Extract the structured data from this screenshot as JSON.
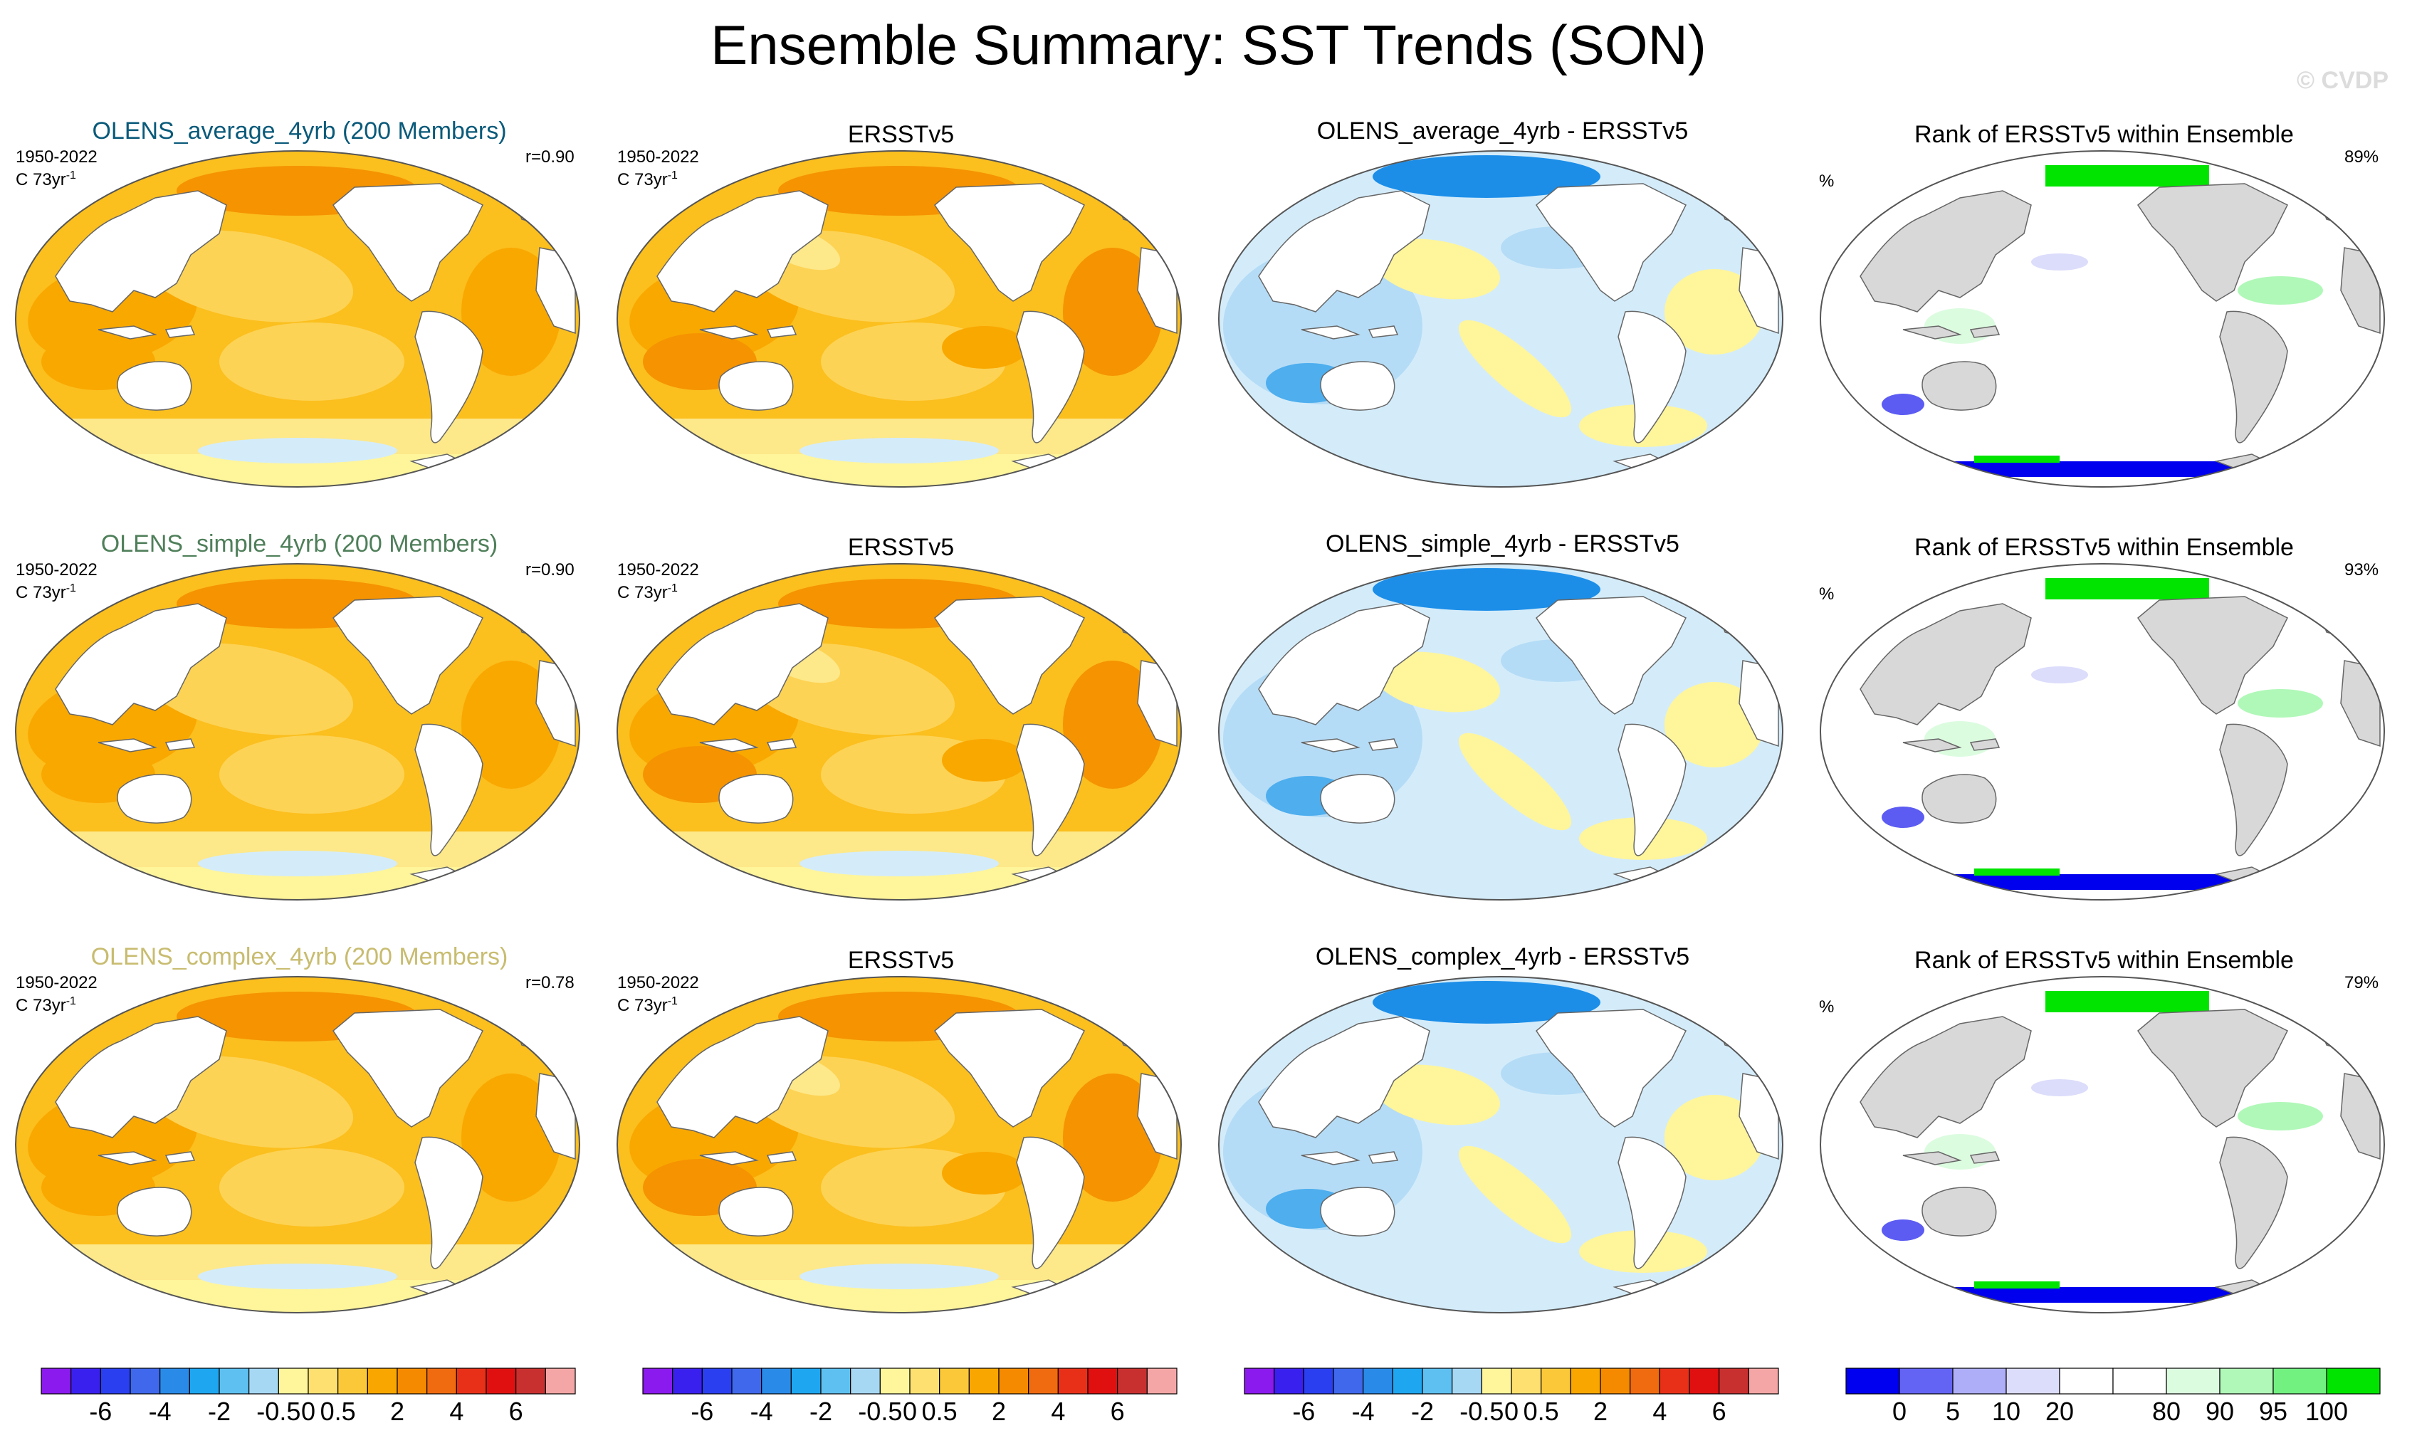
{
  "title": "Ensemble Summary: SST Trends (SON)",
  "watermark": "© CVDP",
  "colors": {
    "warm": [
      "#fff59b",
      "#fde88a",
      "#fdd355",
      "#fbbf1e",
      "#f9a800",
      "#f59300"
    ],
    "cool": [
      "#d4ecfa",
      "#b5dcf6",
      "#8ccaf2",
      "#4eaeee",
      "#1c8ee8"
    ],
    "land_gray": "#d8d8d8",
    "rank_low": [
      "#0000ee",
      "#5c5cf2",
      "#a8a8f6",
      "#dcdcfb"
    ],
    "rank_high": [
      "#dcfce0",
      "#b0f8b8",
      "#72f080",
      "#00e400"
    ]
  },
  "rows": [
    {
      "model_title": "OLENS_average_4yrb (200 Members)",
      "model_title_color": "#0a5a7a",
      "period": "1950-2022",
      "units": "C 73yr",
      "units_sup": "-1",
      "corr": "r=0.90",
      "obs_title": "ERSSTv5",
      "diff_title": "OLENS_average_4yrb - ERSSTv5",
      "rank_title": "Rank of ERSSTv5 within Ensemble",
      "rank_units": "%",
      "rank_pct": "89%"
    },
    {
      "model_title": "OLENS_simple_4yrb (200 Members)",
      "model_title_color": "#4f7f5a",
      "period": "1950-2022",
      "units": "C 73yr",
      "units_sup": "-1",
      "corr": "r=0.90",
      "obs_title": "ERSSTv5",
      "diff_title": "OLENS_simple_4yrb - ERSSTv5",
      "rank_title": "Rank of ERSSTv5 within Ensemble",
      "rank_units": "%",
      "rank_pct": "93%"
    },
    {
      "model_title": "OLENS_complex_4yrb (200 Members)",
      "model_title_color": "#c8bc70",
      "period": "1950-2022",
      "units": "C 73yr",
      "units_sup": "-1",
      "corr": "r=0.78",
      "obs_title": "ERSSTv5",
      "diff_title": "OLENS_complex_4yrb - ERSSTv5",
      "rank_title": "Rank of ERSSTv5 within Ensemble",
      "rank_units": "%",
      "rank_pct": "79%"
    }
  ],
  "colorbars": {
    "trend": {
      "colors": [
        "#8a1aee",
        "#3a20ee",
        "#2a3ff0",
        "#3f68ec",
        "#2a8ae8",
        "#1ea6f0",
        "#5ec0f0",
        "#a6d8f4",
        "#fff59b",
        "#fde070",
        "#fbc83a",
        "#f9a600",
        "#f58a00",
        "#f06a10",
        "#e83018",
        "#e01010",
        "#c83030",
        "#f4a6a6"
      ],
      "labels": [
        "-6",
        "-4",
        "-2",
        "-0.5",
        "0",
        "0.5",
        "2",
        "4",
        "6"
      ]
    },
    "rank": {
      "colors": [
        "#0000f0",
        "#6464f4",
        "#aeaef8",
        "#dcdcfb",
        "#ffffff",
        "#ffffff",
        "#dcfce0",
        "#b0f8b8",
        "#72f080",
        "#00e400"
      ],
      "labels": [
        "0",
        "5",
        "10",
        "20",
        "80",
        "90",
        "95",
        "100"
      ]
    }
  }
}
